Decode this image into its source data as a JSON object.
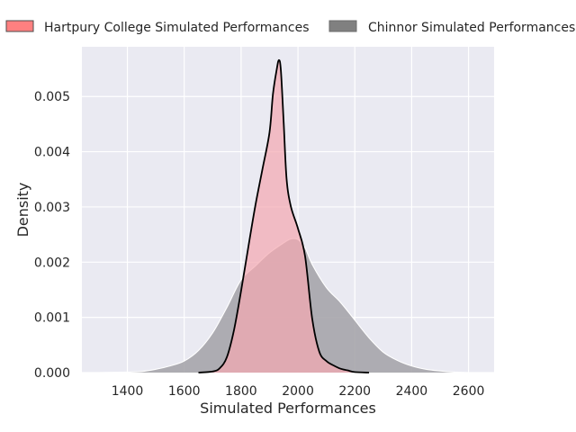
{
  "chart_data": {
    "type": "area",
    "title": "",
    "xlabel": "Simulated Performances",
    "ylabel": "Density",
    "xlim": [
      1240,
      2690
    ],
    "ylim": [
      0,
      0.0059
    ],
    "xticks": [
      1400,
      1600,
      1800,
      2000,
      2200,
      2400,
      2600
    ],
    "yticks": [
      0.0,
      0.001,
      0.002,
      0.003,
      0.004,
      0.005
    ],
    "ytick_labels": [
      "0.000",
      "0.001",
      "0.002",
      "0.003",
      "0.004",
      "0.005"
    ],
    "grid": true,
    "legend_position": "top",
    "series": [
      {
        "name": "Chinnor Simulated Performances",
        "color": "#808080",
        "fill_color": "#a6a5ab",
        "line_color": "#ffffff",
        "x": [
          1300,
          1400,
          1450,
          1500,
          1550,
          1600,
          1650,
          1700,
          1750,
          1800,
          1850,
          1900,
          1950,
          1975,
          2000,
          2025,
          2050,
          2100,
          2150,
          2200,
          2250,
          2300,
          2350,
          2400,
          2450,
          2500,
          2550,
          2600,
          2630
        ],
        "y": [
          0.0,
          1e-05,
          2e-05,
          6e-05,
          0.00012,
          0.00021,
          0.0004,
          0.00072,
          0.00118,
          0.00168,
          0.00193,
          0.00217,
          0.00235,
          0.00242,
          0.00241,
          0.00226,
          0.00196,
          0.00154,
          0.00127,
          0.00095,
          0.00063,
          0.00037,
          0.00022,
          0.00012,
          6e-05,
          3e-05,
          1e-05,
          0.0,
          0.0
        ]
      },
      {
        "name": "Hartpury College Simulated Performances",
        "color": "#ff8080",
        "fill_color": "#f4a9b1",
        "line_color": "#000000",
        "x": [
          1650,
          1700,
          1725,
          1750,
          1775,
          1800,
          1825,
          1850,
          1875,
          1900,
          1912,
          1925,
          1933,
          1940,
          1950,
          1960,
          1975,
          2000,
          2025,
          2050,
          2075,
          2100,
          2125,
          2150,
          2175,
          2200,
          2250
        ],
        "y": [
          0.0,
          2e-05,
          8e-05,
          0.00028,
          0.00077,
          0.00148,
          0.00226,
          0.00302,
          0.00368,
          0.00435,
          0.00504,
          0.00548,
          0.00566,
          0.00547,
          0.00451,
          0.00351,
          0.00301,
          0.00261,
          0.00211,
          0.00098,
          0.00038,
          0.00021,
          0.00013,
          7e-05,
          4e-05,
          1e-05,
          0.0
        ]
      }
    ]
  }
}
